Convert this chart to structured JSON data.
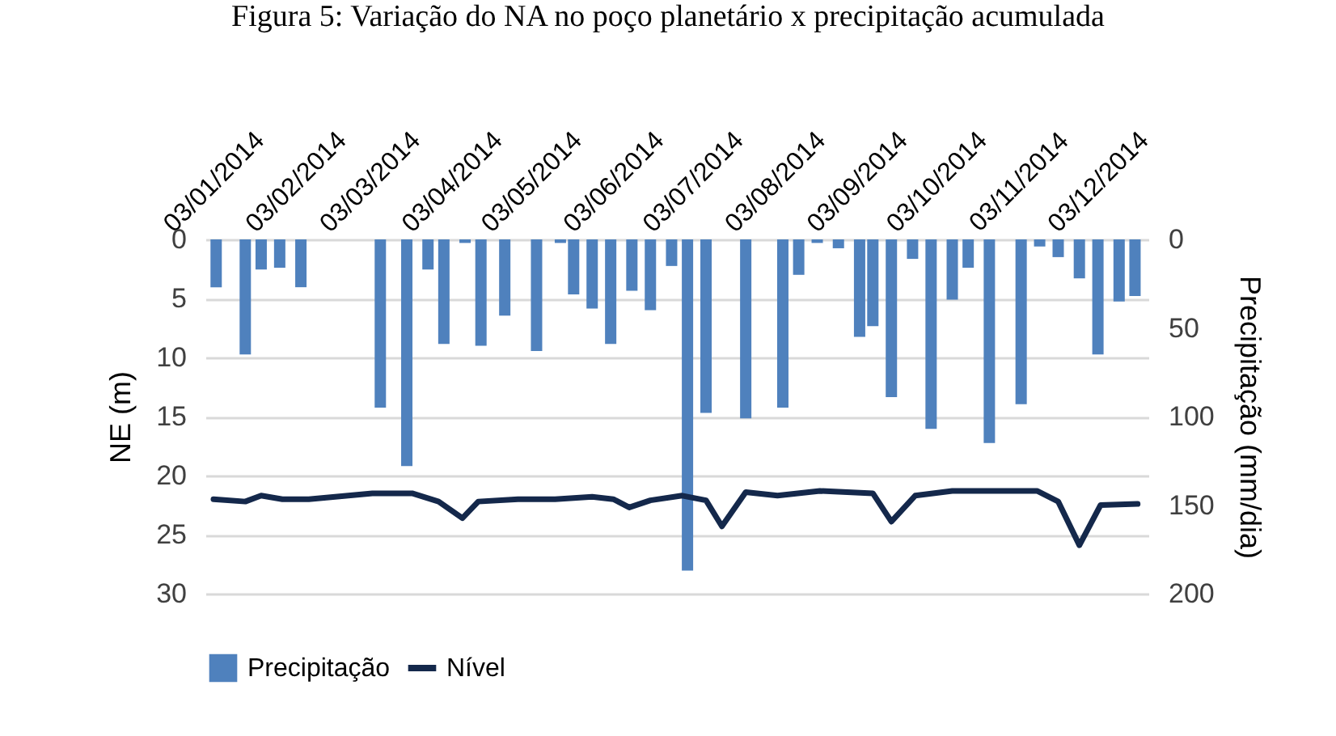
{
  "chart_data": {
    "type": "bar",
    "title": "Figura 5: Variação do NA no poço planetário x precipitação acumulada",
    "ylabel": "NE (m)",
    "y2label": "Precipitação (mm/dia)",
    "xlim": [
      "2014-01-01",
      "2014-12-17"
    ],
    "xticks": [
      {
        "value": "2014-01-03",
        "label": "03/01/2014"
      },
      {
        "value": "2014-02-03",
        "label": "03/02/2014"
      },
      {
        "value": "2014-03-03",
        "label": "03/03/2014"
      },
      {
        "value": "2014-04-03",
        "label": "03/04/2014"
      },
      {
        "value": "2014-05-03",
        "label": "03/05/2014"
      },
      {
        "value": "2014-06-03",
        "label": "03/06/2014"
      },
      {
        "value": "2014-07-03",
        "label": "03/07/2014"
      },
      {
        "value": "2014-08-03",
        "label": "03/08/2014"
      },
      {
        "value": "2014-09-03",
        "label": "03/09/2014"
      },
      {
        "value": "2014-10-03",
        "label": "03/10/2014"
      },
      {
        "value": "2014-11-03",
        "label": "03/11/2014"
      },
      {
        "value": "2014-12-03",
        "label": "03/12/2014"
      }
    ],
    "ylim": [
      30,
      0
    ],
    "yticks": [
      0,
      5,
      10,
      15,
      20,
      25,
      30
    ],
    "y2lim": [
      200,
      0
    ],
    "y2ticks": [
      0,
      50,
      100,
      150,
      200
    ],
    "grid": "y",
    "legend": "bottom",
    "series": [
      {
        "name": "Precipitação",
        "axis": "y2",
        "color": "#4f81bd",
        "x": [
          "2014-01-02",
          "2014-01-13",
          "2014-01-19",
          "2014-01-26",
          "2014-02-03",
          "2014-03-05",
          "2014-03-15",
          "2014-03-23",
          "2014-03-29",
          "2014-04-06",
          "2014-04-12",
          "2014-04-21",
          "2014-05-03",
          "2014-05-12",
          "2014-05-17",
          "2014-05-24",
          "2014-05-31",
          "2014-06-08",
          "2014-06-15",
          "2014-06-23",
          "2014-06-29",
          "2014-07-06",
          "2014-07-21",
          "2014-08-04",
          "2014-08-10",
          "2014-08-17",
          "2014-08-25",
          "2014-09-02",
          "2014-09-07",
          "2014-09-14",
          "2014-09-22",
          "2014-09-29",
          "2014-10-07",
          "2014-10-13",
          "2014-10-21",
          "2014-11-02",
          "2014-11-09",
          "2014-11-16",
          "2014-11-24",
          "2014-12-01",
          "2014-12-09",
          "2014-12-15"
        ],
        "values": [
          27,
          65,
          17,
          16,
          27,
          95,
          128,
          17,
          59,
          2,
          60,
          43,
          63,
          2,
          31,
          39,
          59,
          29,
          40,
          15,
          187,
          98,
          101,
          95,
          20,
          2,
          5,
          55,
          49,
          89,
          11,
          107,
          34,
          16,
          115,
          93,
          4,
          10,
          22,
          65,
          35,
          32
        ]
      },
      {
        "name": "Nível",
        "type": "line",
        "axis": "y",
        "color": "#14284b",
        "x": [
          "2014-01-01",
          "2014-01-13",
          "2014-01-19",
          "2014-01-27",
          "2014-02-06",
          "2014-03-02",
          "2014-03-17",
          "2014-03-27",
          "2014-04-05",
          "2014-04-11",
          "2014-04-26",
          "2014-05-10",
          "2014-05-24",
          "2014-06-01",
          "2014-06-07",
          "2014-06-15",
          "2014-06-27",
          "2014-07-06",
          "2014-07-12",
          "2014-07-21",
          "2014-08-02",
          "2014-08-18",
          "2014-09-07",
          "2014-09-14",
          "2014-09-23",
          "2014-10-07",
          "2014-11-08",
          "2014-11-16",
          "2014-11-24",
          "2014-12-02",
          "2014-12-16"
        ],
        "values": [
          22.0,
          22.2,
          21.7,
          22.0,
          22.0,
          21.5,
          21.5,
          22.2,
          23.6,
          22.2,
          22.0,
          22.0,
          21.8,
          22.0,
          22.7,
          22.1,
          21.7,
          22.1,
          24.3,
          21.4,
          21.7,
          21.3,
          21.5,
          23.9,
          21.7,
          21.3,
          21.3,
          22.2,
          25.9,
          22.5,
          22.4
        ]
      }
    ]
  }
}
